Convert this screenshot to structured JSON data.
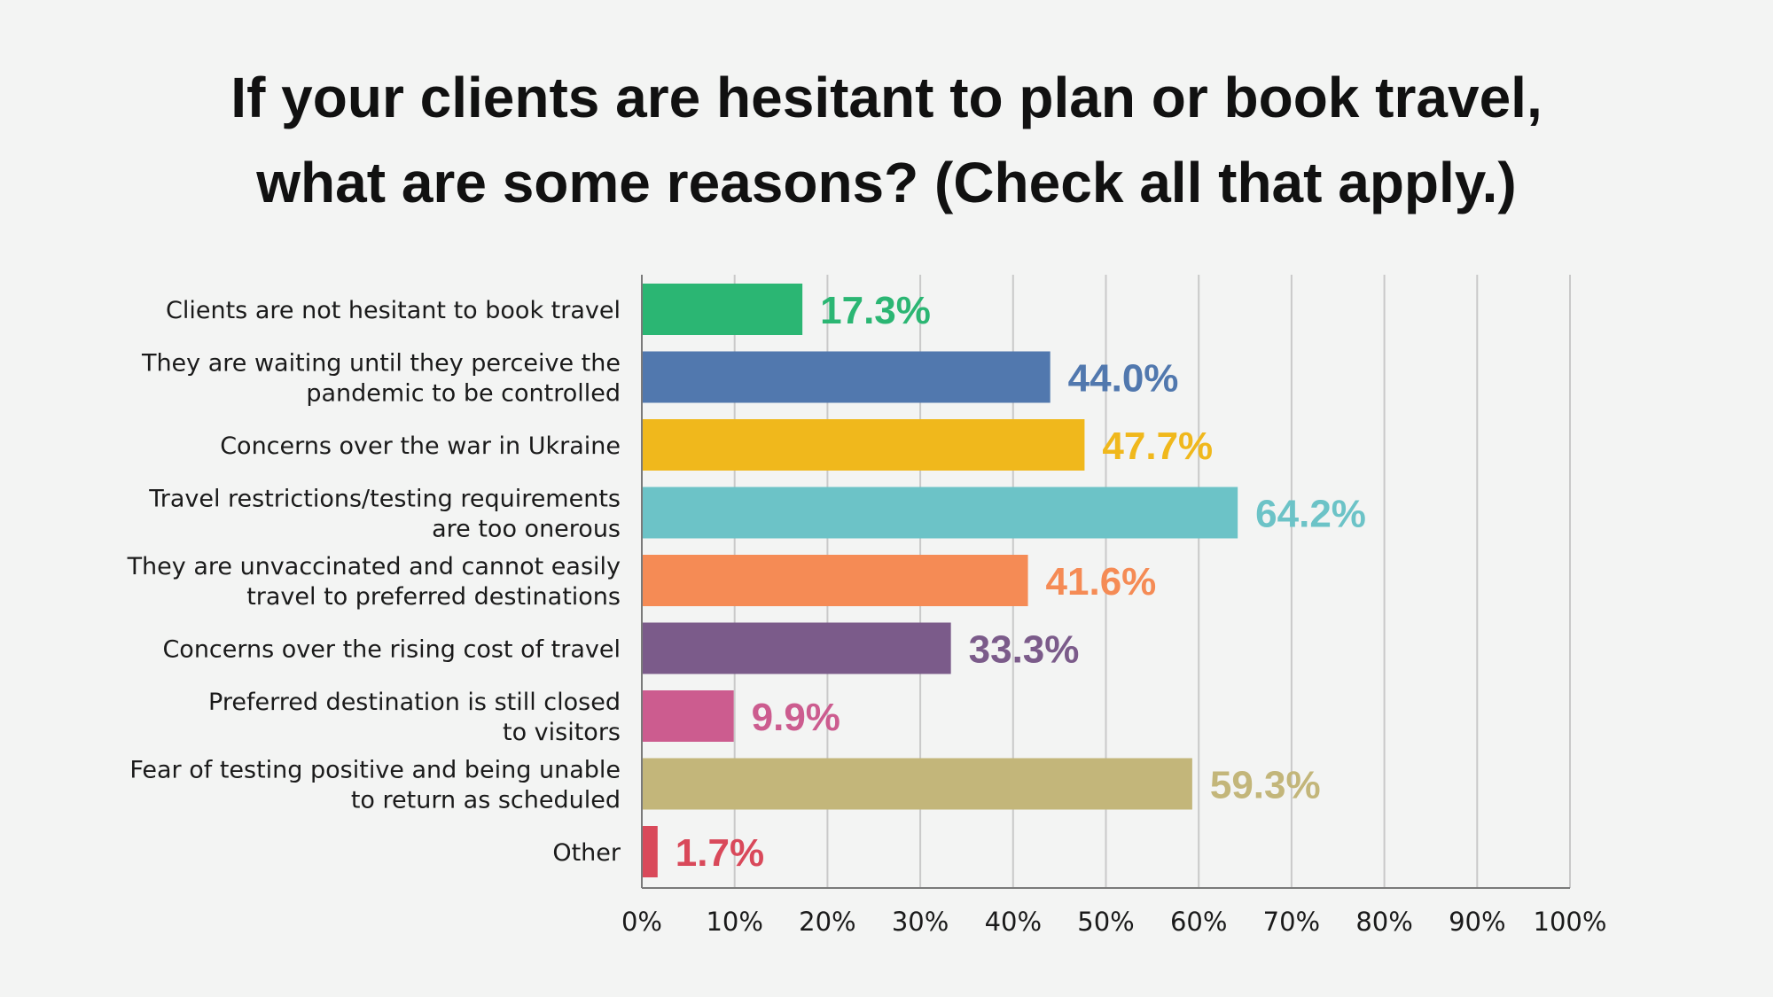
{
  "chart_data": {
    "type": "bar",
    "orientation": "horizontal",
    "title": "If your clients are hesitant to plan or book travel, what are some reasons? (Check all that apply.)",
    "title_lines": [
      "If your clients are hesitant to plan or book travel,",
      "what are some reasons? (Check all that apply.)"
    ],
    "xlabel": "",
    "ylabel": "",
    "xlim": [
      0,
      100
    ],
    "grid": true,
    "legend": "none",
    "ticks": [
      "0%",
      "10%",
      "20%",
      "30%",
      "40%",
      "50%",
      "60%",
      "70%",
      "80%",
      "90%",
      "100%"
    ],
    "categories": [
      "Clients are not hesitant to book travel",
      "They are waiting until they perceive the pandemic to be controlled",
      "Concerns over the war in Ukraine",
      "Travel restrictions/testing requirements are too onerous",
      "They are unvaccinated and cannot easily travel to preferred destinations",
      "Concerns over the rising cost of travel",
      "Preferred destination is still closed to visitors",
      "Fear of testing positive and being unable to return as scheduled",
      "Other"
    ],
    "category_lines": [
      [
        "Clients are not hesitant to book travel"
      ],
      [
        "They are waiting until they perceive the",
        "pandemic to be controlled"
      ],
      [
        "Concerns over the war in Ukraine"
      ],
      [
        "Travel restrictions/testing requirements",
        "are too onerous"
      ],
      [
        "They are unvaccinated and cannot easily",
        "travel to preferred destinations"
      ],
      [
        "Concerns over the rising cost of travel"
      ],
      [
        "Preferred destination is still closed",
        "to visitors"
      ],
      [
        "Fear of testing positive and being unable",
        "to return as scheduled"
      ],
      [
        "Other"
      ]
    ],
    "values": [
      17.3,
      44.0,
      47.7,
      64.2,
      41.6,
      33.3,
      9.9,
      59.3,
      1.7
    ],
    "value_labels": [
      "17.3%",
      "44.0%",
      "47.7%",
      "64.2%",
      "41.6%",
      "33.3%",
      "9.9%",
      "59.3%",
      "1.7%"
    ],
    "colors": [
      "#2bb673",
      "#5178ae",
      "#f0b81c",
      "#6cc3c7",
      "#f58b55",
      "#7b5b8a",
      "#cc5c8f",
      "#c3b67a",
      "#d9495a"
    ],
    "grid_color": "#c9c9c9",
    "axis_color": "#7a7a7a"
  }
}
